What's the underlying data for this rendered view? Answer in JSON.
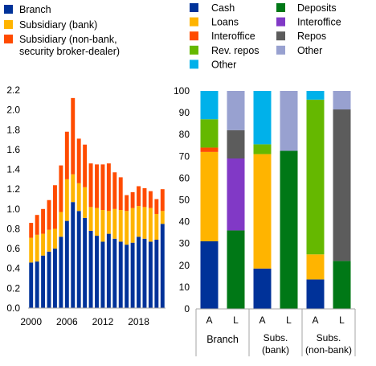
{
  "colors": {
    "Branch": "#003299",
    "SubsidiaryBank": "#FFB400",
    "SubsidiaryNonBank": "#FF4B00",
    "Cash": "#003299",
    "Loans": "#FFB400",
    "Interoffice": "#FF4B00",
    "RevRepos": "#65B800",
    "Other": "#00B1EA",
    "Deposits": "#007816",
    "Interoffice2": "#8139C6",
    "Repos": "#5C5C5C",
    "Other2": "#98A1D0",
    "axis": "#A6A6A6"
  },
  "chart_data": [
    {
      "type": "bar",
      "stacked": true,
      "x": [
        2000,
        2001,
        2002,
        2003,
        2004,
        2005,
        2006,
        2007,
        2008,
        2009,
        2010,
        2011,
        2012,
        2013,
        2014,
        2015,
        2016,
        2017,
        2018,
        2019,
        2020,
        2021,
        2022
      ],
      "xticks": [
        "2000",
        "2006",
        "2012",
        "2018"
      ],
      "ylim": [
        0,
        2.2
      ],
      "yticks": [
        "0.0",
        "0.2",
        "0.4",
        "0.6",
        "0.8",
        "1.0",
        "1.2",
        "1.4",
        "1.6",
        "1.8",
        "2.0",
        "2.2"
      ],
      "series": [
        {
          "name": "Branch",
          "color_key": "Branch",
          "values": [
            0.46,
            0.47,
            0.53,
            0.57,
            0.6,
            0.72,
            0.88,
            1.07,
            0.98,
            0.91,
            0.78,
            0.73,
            0.67,
            0.75,
            0.7,
            0.67,
            0.64,
            0.66,
            0.72,
            0.7,
            0.67,
            0.69,
            0.85
          ]
        },
        {
          "name": "Subsidiary (bank)",
          "color_key": "SubsidiaryBank",
          "values": [
            0.25,
            0.27,
            0.22,
            0.22,
            0.2,
            0.25,
            0.42,
            0.28,
            0.28,
            0.31,
            0.24,
            0.28,
            0.32,
            0.23,
            0.3,
            0.32,
            0.34,
            0.35,
            0.31,
            0.32,
            0.34,
            0.26,
            0.13
          ]
        },
        {
          "name": "Subsidiary (non-bank, security broker-dealer)",
          "color_key": "SubsidiaryNonBank",
          "values": [
            0.15,
            0.2,
            0.25,
            0.3,
            0.44,
            0.47,
            0.48,
            0.77,
            0.45,
            0.43,
            0.44,
            0.44,
            0.46,
            0.48,
            0.37,
            0.33,
            0.16,
            0.16,
            0.2,
            0.19,
            0.17,
            0.15,
            0.22
          ]
        }
      ]
    },
    {
      "type": "bar",
      "stacked": true,
      "ylim": [
        0,
        100
      ],
      "yticks": [
        "0",
        "10",
        "20",
        "30",
        "40",
        "50",
        "60",
        "70",
        "80",
        "90",
        "100"
      ],
      "groups": [
        "Branch",
        "Subs. (bank)",
        "Subs. (non-bank)"
      ],
      "bars": [
        {
          "label": "A",
          "group": 0,
          "stack": [
            {
              "name": "Cash",
              "value": 31,
              "color_key": "Cash"
            },
            {
              "name": "Loans",
              "value": 41,
              "color_key": "Loans"
            },
            {
              "name": "Interoffice",
              "value": 2,
              "color_key": "Interoffice"
            },
            {
              "name": "Rev. repos",
              "value": 13,
              "color_key": "RevRepos"
            },
            {
              "name": "Other",
              "value": 13,
              "color_key": "Other"
            }
          ]
        },
        {
          "label": "L",
          "group": 0,
          "stack": [
            {
              "name": "Deposits",
              "value": 36,
              "color_key": "Deposits"
            },
            {
              "name": "Interoffice",
              "value": 33,
              "color_key": "Interoffice2"
            },
            {
              "name": "Repos",
              "value": 13,
              "color_key": "Repos"
            },
            {
              "name": "Other",
              "value": 18,
              "color_key": "Other2"
            }
          ]
        },
        {
          "label": "A",
          "group": 1,
          "stack": [
            {
              "name": "Cash",
              "value": 18.5,
              "color_key": "Cash"
            },
            {
              "name": "Loans",
              "value": 52.5,
              "color_key": "Loans"
            },
            {
              "name": "Rev. repos",
              "value": 4.5,
              "color_key": "RevRepos"
            },
            {
              "name": "Other",
              "value": 24.5,
              "color_key": "Other"
            }
          ]
        },
        {
          "label": "L",
          "group": 1,
          "stack": [
            {
              "name": "Deposits",
              "value": 72.5,
              "color_key": "Deposits"
            },
            {
              "name": "Other",
              "value": 27.5,
              "color_key": "Other2"
            }
          ]
        },
        {
          "label": "A",
          "group": 2,
          "stack": [
            {
              "name": "Cash",
              "value": 13.5,
              "color_key": "Cash"
            },
            {
              "name": "Loans",
              "value": 11.5,
              "color_key": "Loans"
            },
            {
              "name": "Rev. repos",
              "value": 71,
              "color_key": "RevRepos"
            },
            {
              "name": "Other",
              "value": 4,
              "color_key": "Other"
            }
          ]
        },
        {
          "label": "L",
          "group": 2,
          "stack": [
            {
              "name": "Deposits",
              "value": 22,
              "color_key": "Deposits"
            },
            {
              "name": "Repos",
              "value": 69.5,
              "color_key": "Repos"
            },
            {
              "name": "Other",
              "value": 8.5,
              "color_key": "Other2"
            }
          ]
        }
      ]
    }
  ],
  "legend_left": [
    {
      "label": "Branch",
      "color_key": "Branch"
    },
    {
      "label": "Subsidiary (bank)",
      "color_key": "SubsidiaryBank"
    },
    {
      "label": "Subsidiary (non-bank,",
      "label2": "security broker-dealer)",
      "color_key": "SubsidiaryNonBank"
    }
  ],
  "legend_right_col1": [
    {
      "label": "Cash",
      "color_key": "Cash"
    },
    {
      "label": "Loans",
      "color_key": "Loans"
    },
    {
      "label": "Interoffice",
      "color_key": "Interoffice"
    },
    {
      "label": "Rev. repos",
      "color_key": "RevRepos"
    },
    {
      "label": "Other",
      "color_key": "Other"
    }
  ],
  "legend_right_col2": [
    {
      "label": "Deposits",
      "color_key": "Deposits"
    },
    {
      "label": "Interoffice",
      "color_key": "Interoffice2"
    },
    {
      "label": "Repos",
      "color_key": "Repos"
    },
    {
      "label": "Other",
      "color_key": "Other2"
    }
  ],
  "group_labels": [
    {
      "line1": "Branch",
      "line2": ""
    },
    {
      "line1": "Subs.",
      "line2": "(bank)"
    },
    {
      "line1": "Subs.",
      "line2": "(non-bank)"
    }
  ]
}
